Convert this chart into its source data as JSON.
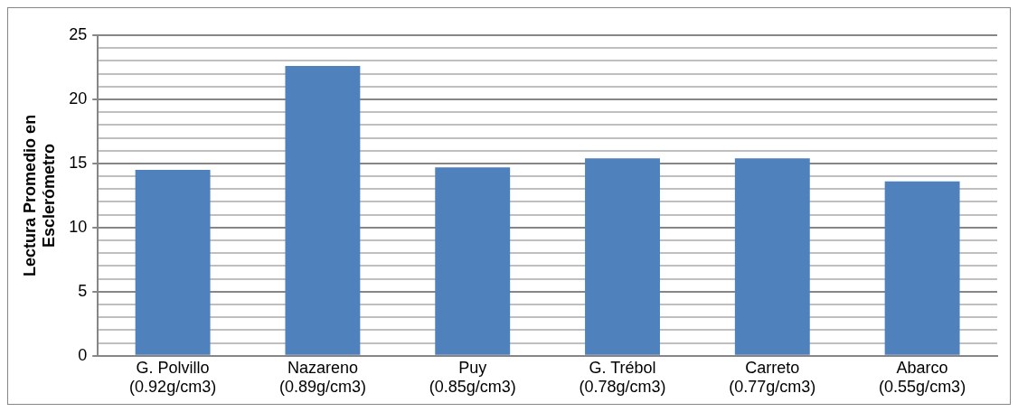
{
  "chart_data": {
    "type": "bar",
    "ylabel": "Lectura Promedio en\nEsclerómetro",
    "categories": [
      "G. Polvillo\n(0.92g/cm3)",
      "Nazareno\n(0.89g/cm3)",
      "Puy\n(0.85g/cm3)",
      "G. Trébol\n(0.78g/cm3)",
      "Carreto\n(0.77g/cm3)",
      "Abarco\n(0.55g/cm3)"
    ],
    "values": [
      14.5,
      22.6,
      14.7,
      15.4,
      15.4,
      13.6
    ],
    "color": "#4f81bd",
    "ylim": [
      0,
      25
    ],
    "yticks": [
      0,
      {
        "value": 1,
        "label": null
      },
      {
        "value": 2,
        "label": null
      },
      {
        "value": 3,
        "label": null
      },
      {
        "value": 4,
        "label": null
      },
      5,
      {
        "value": 6,
        "label": null
      },
      {
        "value": 7,
        "label": null
      },
      {
        "value": 8,
        "label": null
      },
      {
        "value": 9,
        "label": null
      },
      10,
      {
        "value": 11,
        "label": null
      },
      {
        "value": 12,
        "label": null
      },
      {
        "value": 13,
        "label": null
      },
      {
        "value": 14,
        "label": null
      },
      15,
      {
        "value": 16,
        "label": null
      },
      {
        "value": 17,
        "label": null
      },
      {
        "value": 18,
        "label": null
      },
      {
        "value": 19,
        "label": null
      },
      20,
      {
        "value": 21,
        "label": null
      },
      {
        "value": 22,
        "label": null
      },
      {
        "value": 23,
        "label": null
      },
      {
        "value": 24,
        "label": null
      },
      25
    ],
    "grid": "y",
    "legend": false
  }
}
